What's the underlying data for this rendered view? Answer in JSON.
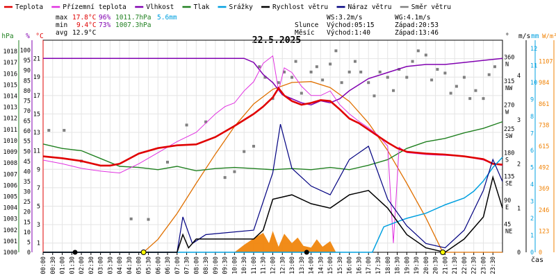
{
  "chart_data": {
    "type": "line",
    "title": "22.5.2025",
    "x_label": "čas",
    "x_ticks": [
      "00:00",
      "00:30",
      "01:00",
      "01:30",
      "02:00",
      "02:30",
      "03:00",
      "03:30",
      "04:00",
      "04:30",
      "05:00",
      "05:30",
      "06:00",
      "06:30",
      "07:00",
      "07:30",
      "08:00",
      "08:30",
      "09:00",
      "09:30",
      "10:00",
      "10:30",
      "11:00",
      "11:30",
      "12:00",
      "12:30",
      "13:00",
      "13:30",
      "14:00",
      "14:30",
      "15:00",
      "15:30",
      "16:00",
      "16:30",
      "17:00",
      "17:30",
      "18:00",
      "18:30",
      "19:00",
      "19:30",
      "20:00",
      "20:30",
      "21:00",
      "21:30",
      "22:00",
      "22:30",
      "23:00",
      "23:30"
    ],
    "x_range": [
      0,
      24
    ],
    "legend": [
      {
        "name": "Teplota",
        "color": "#e00000"
      },
      {
        "name": "Přízemní teplota",
        "color": "#e030e0"
      },
      {
        "name": "Vlhkost",
        "color": "#8000b0"
      },
      {
        "name": "Tlak",
        "color": "#208020"
      },
      {
        "name": "Srážky",
        "color": "#00a0e0"
      },
      {
        "name": "Rychlost větru",
        "color": "#000000"
      },
      {
        "name": "Náraz větru",
        "color": "#000080"
      },
      {
        "name": "Směr větru",
        "color": "#808080"
      }
    ],
    "stats": {
      "max": {
        "label": "max",
        "temp": "17.8°C",
        "hum": "96%",
        "press": "1011.7hPa",
        "rain": "5.6mm"
      },
      "min": {
        "label": "min",
        "temp": "9.4°C",
        "hum": "73%",
        "press": "1007.3hPa"
      },
      "avg": {
        "label": "avg",
        "temp": "12.9°C"
      },
      "wind": {
        "ws": "WS:3.2m/s",
        "wg": "WG:4.1m/s"
      },
      "sun": {
        "label": "Slunce",
        "rise": "Východ:05:15",
        "set": "Západ:20:53"
      },
      "moon": {
        "label": "Měsíc",
        "rise": "Východ:1:40",
        "set": "Západ:13:46"
      }
    },
    "axes": {
      "hpa": {
        "label": "hPa",
        "range": [
          1000,
          1019
        ],
        "ticks": [
          1000,
          1001,
          1002,
          1003,
          1004,
          1005,
          1006,
          1007,
          1008,
          1009,
          1010,
          1011,
          1012,
          1013,
          1014,
          1015,
          1016,
          1017,
          1018
        ]
      },
      "percent": {
        "label": "%",
        "range": [
          0,
          105
        ],
        "ticks": [
          0,
          5,
          10,
          15,
          20,
          25,
          30,
          35,
          40,
          45,
          50,
          55,
          60,
          65,
          70,
          75,
          80,
          85,
          90,
          95,
          100
        ]
      },
      "celsius": {
        "label": "°C",
        "range": [
          0,
          23
        ],
        "ticks": [
          1,
          3,
          5,
          7,
          9,
          11,
          13,
          15,
          17,
          19,
          21
        ]
      },
      "degrees": {
        "label": "°",
        "labels": [
          {
            "deg": 360,
            "t": "360",
            "d": "N"
          },
          {
            "deg": 315,
            "t": "315",
            "d": "NW"
          },
          {
            "deg": 270,
            "t": "270",
            "d": "W"
          },
          {
            "deg": 225,
            "t": "225",
            "d": "SW"
          },
          {
            "deg": 180,
            "t": "180",
            "d": "S"
          },
          {
            "deg": 135,
            "t": "135",
            "d": "SE"
          },
          {
            "deg": 90,
            "t": "90",
            "d": "E"
          },
          {
            "deg": 45,
            "t": "45",
            "d": "NE"
          }
        ]
      },
      "ms": {
        "label": "m/s",
        "range": [
          0,
          4.8
        ],
        "ticks": [
          0,
          1,
          2,
          3,
          4
        ]
      },
      "mm": {
        "label": "mm",
        "range": [
          0,
          12.5
        ],
        "ticks": [
          0,
          1,
          2,
          3,
          4,
          5,
          6,
          7,
          8,
          9,
          10,
          11,
          12
        ]
      },
      "wm2": {
        "label": "W/m²",
        "range": [
          0,
          1230
        ],
        "ticks": [
          0,
          123,
          246,
          369,
          492,
          615,
          738,
          861,
          984,
          1107
        ]
      }
    },
    "series": {
      "temperature": [
        [
          0,
          10.4
        ],
        [
          1,
          10.2
        ],
        [
          2,
          9.9
        ],
        [
          3,
          9.4
        ],
        [
          3.5,
          9.4
        ],
        [
          4,
          9.6
        ],
        [
          5,
          10.7
        ],
        [
          6,
          11.3
        ],
        [
          7,
          11.6
        ],
        [
          8,
          11.7
        ],
        [
          9,
          12.5
        ],
        [
          10,
          13.7
        ],
        [
          11,
          15.0
        ],
        [
          11.5,
          15.8
        ],
        [
          12,
          16.8
        ],
        [
          12.3,
          17.8
        ],
        [
          12.6,
          17.0
        ],
        [
          13,
          16.4
        ],
        [
          13.5,
          16.0
        ],
        [
          14,
          16.2
        ],
        [
          14.5,
          16.5
        ],
        [
          15,
          16.4
        ],
        [
          15.5,
          15.5
        ],
        [
          16,
          14.5
        ],
        [
          16.5,
          14.0
        ],
        [
          17,
          13.3
        ],
        [
          17.5,
          12.6
        ],
        [
          18,
          11.9
        ],
        [
          18.5,
          11.3
        ],
        [
          19,
          10.9
        ],
        [
          20,
          10.7
        ],
        [
          21,
          10.6
        ],
        [
          22,
          10.4
        ],
        [
          23,
          10.1
        ],
        [
          23.5,
          9.6
        ],
        [
          24,
          9.5
        ]
      ],
      "ground_temperature": [
        [
          0,
          10.0
        ],
        [
          1,
          9.6
        ],
        [
          2,
          9.1
        ],
        [
          3,
          8.8
        ],
        [
          4,
          8.6
        ],
        [
          5,
          9.6
        ],
        [
          6,
          10.8
        ],
        [
          7,
          12.0
        ],
        [
          8,
          13.0
        ],
        [
          8.5,
          14.0
        ],
        [
          9,
          15.0
        ],
        [
          9.5,
          15.8
        ],
        [
          10,
          16.2
        ],
        [
          10.5,
          17.5
        ],
        [
          11,
          18.5
        ],
        [
          11.5,
          20.5
        ],
        [
          12,
          21.3
        ],
        [
          12.3,
          17.5
        ],
        [
          12.6,
          20.0
        ],
        [
          13,
          19.5
        ],
        [
          13.5,
          18.0
        ],
        [
          14,
          17.0
        ],
        [
          14.5,
          17.0
        ],
        [
          15,
          17.5
        ],
        [
          15.5,
          16.0
        ],
        [
          16,
          15.0
        ],
        [
          16.5,
          14.2
        ],
        [
          17,
          13.5
        ],
        [
          17.5,
          12.7
        ],
        [
          18,
          11.5
        ],
        [
          18.3,
          1.0
        ],
        [
          18.6,
          11.4
        ],
        [
          19,
          10.8
        ],
        [
          20,
          10.6
        ],
        [
          21,
          10.5
        ],
        [
          22,
          10.4
        ],
        [
          23,
          10.0
        ],
        [
          23.5,
          9.6
        ],
        [
          24,
          9.4
        ]
      ],
      "humidity": [
        [
          0,
          96
        ],
        [
          10.5,
          96
        ],
        [
          11,
          94
        ],
        [
          11.5,
          88
        ],
        [
          12,
          84
        ],
        [
          12.5,
          78
        ],
        [
          13,
          76
        ],
        [
          13.5,
          74
        ],
        [
          14,
          73
        ],
        [
          14.5,
          75
        ],
        [
          15,
          74
        ],
        [
          15.5,
          76
        ],
        [
          16,
          80
        ],
        [
          17,
          86
        ],
        [
          18,
          89
        ],
        [
          19,
          92
        ],
        [
          20,
          93
        ],
        [
          21,
          93
        ],
        [
          22,
          94
        ],
        [
          23,
          95
        ],
        [
          24,
          96
        ]
      ],
      "pressure": [
        [
          0,
          1009.7
        ],
        [
          1,
          1009.3
        ],
        [
          2,
          1009.1
        ],
        [
          3,
          1008.4
        ],
        [
          4,
          1007.7
        ],
        [
          5,
          1007.6
        ],
        [
          6,
          1007.4
        ],
        [
          7,
          1007.7
        ],
        [
          8,
          1007.3
        ],
        [
          9,
          1007.5
        ],
        [
          10,
          1007.6
        ],
        [
          11,
          1007.5
        ],
        [
          12,
          1007.4
        ],
        [
          13,
          1007.5
        ],
        [
          14,
          1007.4
        ],
        [
          15,
          1007.6
        ],
        [
          16,
          1007.4
        ],
        [
          17,
          1007.8
        ],
        [
          18,
          1008.3
        ],
        [
          19,
          1009.3
        ],
        [
          20,
          1009.9
        ],
        [
          21,
          1010.2
        ],
        [
          22,
          1010.7
        ],
        [
          23,
          1011.1
        ],
        [
          24,
          1011.7
        ]
      ],
      "rain": [
        [
          0,
          0
        ],
        [
          17.2,
          0
        ],
        [
          17.8,
          1.5
        ],
        [
          18.5,
          1.8
        ],
        [
          19,
          2.0
        ],
        [
          20,
          2.3
        ],
        [
          21,
          2.8
        ],
        [
          22,
          3.2
        ],
        [
          22.5,
          3.6
        ],
        [
          23,
          4.2
        ],
        [
          23.5,
          5.0
        ],
        [
          24,
          5.6
        ]
      ],
      "wind_speed": [
        [
          0,
          0
        ],
        [
          7,
          0
        ],
        [
          7.3,
          0.4
        ],
        [
          7.6,
          0.1
        ],
        [
          8,
          0.3
        ],
        [
          11,
          0.3
        ],
        [
          11.5,
          0.5
        ],
        [
          12,
          1.2
        ],
        [
          13,
          1.3
        ],
        [
          14,
          1.1
        ],
        [
          15,
          1.0
        ],
        [
          16,
          1.3
        ],
        [
          17,
          1.4
        ],
        [
          18,
          1.0
        ],
        [
          19,
          0.4
        ],
        [
          20,
          0.1
        ],
        [
          21,
          0.0
        ],
        [
          22,
          0.3
        ],
        [
          23,
          0.8
        ],
        [
          23.5,
          1.7
        ],
        [
          24,
          1.0
        ]
      ],
      "wind_gust": [
        [
          0,
          0
        ],
        [
          7,
          0
        ],
        [
          7.3,
          0.8
        ],
        [
          7.8,
          0.2
        ],
        [
          8.5,
          0.4
        ],
        [
          11,
          0.5
        ],
        [
          12,
          1.8
        ],
        [
          12.4,
          2.9
        ],
        [
          13,
          1.9
        ],
        [
          14,
          1.5
        ],
        [
          15,
          1.3
        ],
        [
          16,
          2.1
        ],
        [
          17,
          2.4
        ],
        [
          18,
          1.2
        ],
        [
          19,
          0.6
        ],
        [
          20,
          0.2
        ],
        [
          21,
          0.1
        ],
        [
          22,
          0.5
        ],
        [
          23,
          1.4
        ],
        [
          23.5,
          2.1
        ],
        [
          24,
          1.6
        ]
      ],
      "wind_direction_deg": [
        [
          0.3,
          230
        ],
        [
          1.1,
          230
        ],
        [
          2.0,
          172
        ],
        [
          4.6,
          63
        ],
        [
          5.5,
          62
        ],
        [
          6.5,
          170
        ],
        [
          7.5,
          240
        ],
        [
          8.5,
          246
        ],
        [
          9.5,
          141
        ],
        [
          10.0,
          152
        ],
        [
          10.5,
          190
        ],
        [
          11.0,
          200
        ],
        [
          11.3,
          350
        ],
        [
          11.6,
          330
        ],
        [
          12.0,
          290
        ],
        [
          12.3,
          320
        ],
        [
          12.6,
          340
        ],
        [
          13.0,
          330
        ],
        [
          13.2,
          360
        ],
        [
          13.5,
          300
        ],
        [
          14.0,
          340
        ],
        [
          14.3,
          350
        ],
        [
          14.6,
          325
        ],
        [
          15.0,
          355
        ],
        [
          15.3,
          380
        ],
        [
          15.6,
          320
        ],
        [
          16.0,
          340
        ],
        [
          16.3,
          360
        ],
        [
          16.6,
          340
        ],
        [
          17.0,
          320
        ],
        [
          17.3,
          295
        ],
        [
          17.6,
          340
        ],
        [
          18.0,
          330
        ],
        [
          18.3,
          305
        ],
        [
          18.6,
          345
        ],
        [
          19.0,
          330
        ],
        [
          19.3,
          360
        ],
        [
          19.6,
          380
        ],
        [
          20.0,
          372
        ],
        [
          20.3,
          325
        ],
        [
          20.6,
          345
        ],
        [
          21.0,
          338
        ],
        [
          21.3,
          300
        ],
        [
          21.6,
          313
        ],
        [
          22.0,
          330
        ],
        [
          22.3,
          290
        ],
        [
          22.6,
          305
        ],
        [
          23.0,
          290
        ],
        [
          23.3,
          335
        ],
        [
          23.6,
          350
        ]
      ],
      "solar": [
        [
          0,
          0
        ],
        [
          5.25,
          0
        ],
        [
          6,
          75
        ],
        [
          7,
          225
        ],
        [
          8,
          400
        ],
        [
          9,
          570
        ],
        [
          10,
          730
        ],
        [
          11,
          860
        ],
        [
          12,
          945
        ],
        [
          13,
          985
        ],
        [
          14,
          990
        ],
        [
          15,
          955
        ],
        [
          16,
          875
        ],
        [
          17,
          750
        ],
        [
          18,
          590
        ],
        [
          19,
          400
        ],
        [
          20,
          200
        ],
        [
          20.88,
          0
        ],
        [
          24,
          0
        ]
      ],
      "rain_rate": [
        [
          10,
          0
        ],
        [
          10.5,
          0.8
        ],
        [
          11,
          1.5
        ],
        [
          11.5,
          2.1
        ],
        [
          11.8,
          1.0
        ],
        [
          12,
          2.3
        ],
        [
          12.3,
          0.6
        ],
        [
          12.6,
          2.0
        ],
        [
          13,
          1.0
        ],
        [
          13.3,
          1.6
        ],
        [
          13.6,
          0.7
        ],
        [
          14,
          0.5
        ],
        [
          14.3,
          1.4
        ],
        [
          14.6,
          0.6
        ],
        [
          15,
          1.2
        ],
        [
          15.3,
          0
        ]
      ],
      "moon_events": [
        {
          "t": 1.67,
          "kind": "rise"
        },
        {
          "t": 13.77,
          "kind": "set"
        }
      ],
      "sun_events": [
        {
          "t": 5.25,
          "kind": "rise"
        },
        {
          "t": 20.88,
          "kind": "set"
        }
      ]
    }
  }
}
